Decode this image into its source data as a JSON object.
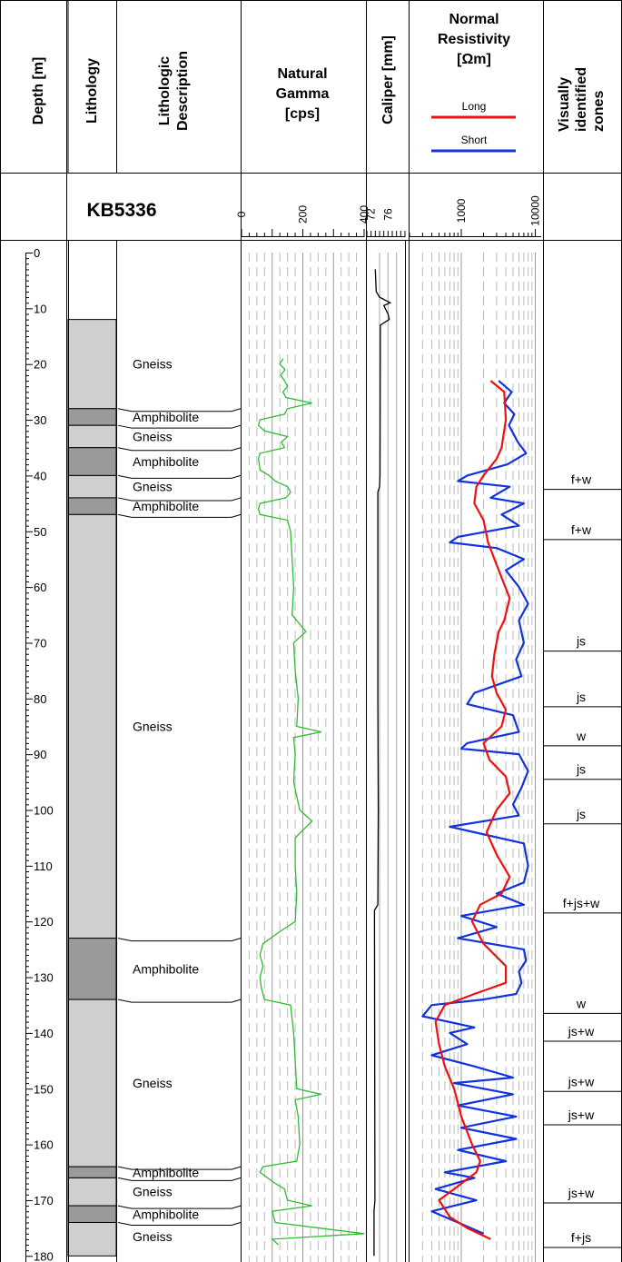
{
  "headers": {
    "depth": "Depth [m]",
    "lithology": "Lithology",
    "description": [
      "Lithologic",
      "Description"
    ],
    "gamma": [
      "Natural",
      "Gamma",
      "[cps]"
    ],
    "caliper": "Caliper [mm]",
    "resistivity": [
      "Normal",
      "Resistivity",
      "[Ωm]"
    ],
    "zones": [
      "Visually",
      "identified",
      "zones"
    ]
  },
  "well_name": "KB5336",
  "legend": {
    "long": "Long",
    "short": "Short"
  },
  "colors": {
    "gamma": "#33bb33",
    "long": "#ee1111",
    "short": "#1133dd",
    "gneiss": "#cfcfcf",
    "amphibolite": "#9a9a9a"
  },
  "chart_data": {
    "type": "line",
    "depth_range": [
      0,
      180
    ],
    "depth_ticks": [
      0,
      10,
      20,
      30,
      40,
      50,
      60,
      70,
      80,
      90,
      100,
      110,
      120,
      130,
      140,
      150,
      160,
      170,
      180
    ],
    "gamma": {
      "ticks": [
        "0",
        "200",
        "400"
      ],
      "range": [
        0,
        400
      ],
      "points": [
        [
          19,
          136
        ],
        [
          20,
          124
        ],
        [
          21,
          142
        ],
        [
          22,
          128
        ],
        [
          23,
          140
        ],
        [
          24,
          150
        ],
        [
          25,
          135
        ],
        [
          26,
          145
        ],
        [
          27,
          230
        ],
        [
          28,
          150
        ],
        [
          29,
          140
        ],
        [
          30,
          60
        ],
        [
          31,
          55
        ],
        [
          32,
          75
        ],
        [
          33,
          150
        ],
        [
          34,
          130
        ],
        [
          35,
          140
        ],
        [
          36,
          60
        ],
        [
          37,
          55
        ],
        [
          38,
          58
        ],
        [
          39,
          60
        ],
        [
          40,
          90
        ],
        [
          41,
          110
        ],
        [
          42,
          150
        ],
        [
          43,
          160
        ],
        [
          44,
          145
        ],
        [
          45,
          60
        ],
        [
          46,
          55
        ],
        [
          47,
          60
        ],
        [
          48,
          150
        ],
        [
          50,
          160
        ],
        [
          55,
          165
        ],
        [
          60,
          170
        ],
        [
          65,
          165
        ],
        [
          68,
          210
        ],
        [
          70,
          170
        ],
        [
          75,
          175
        ],
        [
          80,
          185
        ],
        [
          85,
          180
        ],
        [
          86,
          260
        ],
        [
          87,
          170
        ],
        [
          90,
          175
        ],
        [
          95,
          170
        ],
        [
          100,
          190
        ],
        [
          102,
          230
        ],
        [
          105,
          175
        ],
        [
          110,
          175
        ],
        [
          115,
          180
        ],
        [
          120,
          175
        ],
        [
          122,
          120
        ],
        [
          124,
          70
        ],
        [
          126,
          60
        ],
        [
          128,
          70
        ],
        [
          130,
          60
        ],
        [
          132,
          65
        ],
        [
          134,
          75
        ],
        [
          135,
          160
        ],
        [
          140,
          170
        ],
        [
          145,
          175
        ],
        [
          150,
          180
        ],
        [
          151,
          260
        ],
        [
          152,
          175
        ],
        [
          155,
          185
        ],
        [
          160,
          190
        ],
        [
          163,
          180
        ],
        [
          164,
          70
        ],
        [
          165,
          60
        ],
        [
          167,
          110
        ],
        [
          168,
          140
        ],
        [
          170,
          150
        ],
        [
          171,
          230
        ],
        [
          172,
          100
        ],
        [
          174,
          110
        ],
        [
          176,
          400
        ],
        [
          177,
          100
        ],
        [
          178,
          120
        ]
      ]
    },
    "caliper": {
      "ticks": [
        "72",
        "76"
      ],
      "range": [
        71,
        80
      ],
      "points": [
        [
          3,
          73
        ],
        [
          7,
          73.2
        ],
        [
          8,
          74
        ],
        [
          9,
          76.5
        ],
        [
          9.5,
          75
        ],
        [
          11,
          76
        ],
        [
          12,
          76.3
        ],
        [
          13,
          74.2
        ],
        [
          40,
          74.1
        ],
        [
          42,
          74
        ],
        [
          43,
          73.6
        ],
        [
          80,
          73.6
        ],
        [
          100,
          73.7
        ],
        [
          117,
          73.6
        ],
        [
          118,
          72.8
        ],
        [
          170,
          72.9
        ],
        [
          172,
          72.7
        ],
        [
          180,
          72.7
        ]
      ]
    },
    "resistivity": {
      "ticks": [
        "1000",
        "10000"
      ],
      "range": [
        200,
        12000
      ],
      "scale": "log",
      "long": [
        [
          23,
          2500
        ],
        [
          25,
          3800
        ],
        [
          30,
          4000
        ],
        [
          35,
          3500
        ],
        [
          37,
          3000
        ],
        [
          40,
          2000
        ],
        [
          42,
          1600
        ],
        [
          45,
          1500
        ],
        [
          48,
          2000
        ],
        [
          52,
          2300
        ],
        [
          56,
          3000
        ],
        [
          62,
          4500
        ],
        [
          66,
          3800
        ],
        [
          68,
          3200
        ],
        [
          72,
          2800
        ],
        [
          76,
          2600
        ],
        [
          79,
          3000
        ],
        [
          82,
          4000
        ],
        [
          85,
          3500
        ],
        [
          88,
          2000
        ],
        [
          91,
          2400
        ],
        [
          94,
          4000
        ],
        [
          97,
          4500
        ],
        [
          100,
          3000
        ],
        [
          104,
          2200
        ],
        [
          108,
          3000
        ],
        [
          112,
          4500
        ],
        [
          115,
          3500
        ],
        [
          117,
          1800
        ],
        [
          120,
          1400
        ],
        [
          124,
          2000
        ],
        [
          128,
          4000
        ],
        [
          131,
          4000
        ],
        [
          133,
          1500
        ],
        [
          135,
          600
        ],
        [
          138,
          450
        ],
        [
          142,
          500
        ],
        [
          146,
          600
        ],
        [
          150,
          800
        ],
        [
          155,
          1000
        ],
        [
          160,
          1400
        ],
        [
          163,
          1800
        ],
        [
          165,
          1600
        ],
        [
          168,
          800
        ],
        [
          170,
          500
        ],
        [
          173,
          700
        ],
        [
          175,
          1200
        ],
        [
          177,
          2500
        ]
      ],
      "short": [
        [
          23,
          3200
        ],
        [
          25,
          4800
        ],
        [
          27,
          3800
        ],
        [
          29,
          5200
        ],
        [
          31,
          4400
        ],
        [
          34,
          5800
        ],
        [
          36,
          7500
        ],
        [
          38,
          4200
        ],
        [
          40,
          1200
        ],
        [
          41,
          900
        ],
        [
          42,
          4500
        ],
        [
          44,
          2500
        ],
        [
          45,
          7000
        ],
        [
          47,
          3500
        ],
        [
          49,
          6000
        ],
        [
          51,
          900
        ],
        [
          52,
          700
        ],
        [
          53,
          3000
        ],
        [
          55,
          7000
        ],
        [
          57,
          4000
        ],
        [
          60,
          6000
        ],
        [
          63,
          8000
        ],
        [
          66,
          6000
        ],
        [
          70,
          7000
        ],
        [
          73,
          5500
        ],
        [
          76,
          6500
        ],
        [
          79,
          1500
        ],
        [
          81,
          1200
        ],
        [
          83,
          5000
        ],
        [
          86,
          6000
        ],
        [
          88,
          1200
        ],
        [
          89,
          1000
        ],
        [
          90,
          6000
        ],
        [
          93,
          8000
        ],
        [
          96,
          6500
        ],
        [
          99,
          5000
        ],
        [
          101,
          6000
        ],
        [
          103,
          700
        ],
        [
          104,
          1500
        ],
        [
          106,
          7000
        ],
        [
          110,
          8000
        ],
        [
          113,
          7000
        ],
        [
          115,
          3000
        ],
        [
          117,
          7000
        ],
        [
          119,
          1000
        ],
        [
          121,
          3000
        ],
        [
          123,
          900
        ],
        [
          125,
          7000
        ],
        [
          127,
          7500
        ],
        [
          129,
          6000
        ],
        [
          131,
          6500
        ],
        [
          133,
          5500
        ],
        [
          134,
          2000
        ],
        [
          135,
          400
        ],
        [
          137,
          300
        ],
        [
          139,
          1500
        ],
        [
          140,
          700
        ],
        [
          142,
          1200
        ],
        [
          144,
          400
        ],
        [
          146,
          1500
        ],
        [
          148,
          5000
        ],
        [
          149,
          800
        ],
        [
          151,
          5000
        ],
        [
          153,
          900
        ],
        [
          155,
          5500
        ],
        [
          157,
          1000
        ],
        [
          159,
          5500
        ],
        [
          161,
          900
        ],
        [
          163,
          4000
        ],
        [
          165,
          600
        ],
        [
          166,
          1500
        ],
        [
          168,
          450
        ],
        [
          170,
          1600
        ],
        [
          172,
          400
        ],
        [
          174,
          900
        ],
        [
          176,
          2000
        ]
      ]
    }
  },
  "lithology": [
    {
      "top": 12,
      "bottom": 28,
      "type": "gneiss"
    },
    {
      "top": 28,
      "bottom": 31,
      "type": "amphibolite"
    },
    {
      "top": 31,
      "bottom": 35,
      "type": "gneiss"
    },
    {
      "top": 35,
      "bottom": 40,
      "type": "amphibolite"
    },
    {
      "top": 40,
      "bottom": 44,
      "type": "gneiss"
    },
    {
      "top": 44,
      "bottom": 47,
      "type": "amphibolite"
    },
    {
      "top": 47,
      "bottom": 123,
      "type": "gneiss"
    },
    {
      "top": 123,
      "bottom": 134,
      "type": "amphibolite"
    },
    {
      "top": 134,
      "bottom": 164,
      "type": "gneiss"
    },
    {
      "top": 164,
      "bottom": 166,
      "type": "amphibolite"
    },
    {
      "top": 166,
      "bottom": 171,
      "type": "gneiss"
    },
    {
      "top": 171,
      "bottom": 174,
      "type": "amphibolite"
    },
    {
      "top": 174,
      "bottom": 180,
      "type": "gneiss"
    }
  ],
  "descriptions": [
    {
      "label": "Gneiss",
      "depth": 20,
      "boundary": 28
    },
    {
      "label": "Amphibolite",
      "depth": 29.5,
      "boundary": 31
    },
    {
      "label": "Gneiss",
      "depth": 33,
      "boundary": 35
    },
    {
      "label": "Amphibolite",
      "depth": 37.5,
      "boundary": 40
    },
    {
      "label": "Gneiss",
      "depth": 42,
      "boundary": 44
    },
    {
      "label": "Amphibolite",
      "depth": 45.5,
      "boundary": 47
    },
    {
      "label": "Gneiss",
      "depth": 85,
      "boundary": 123
    },
    {
      "label": "Amphibolite",
      "depth": 128.5,
      "boundary": 134
    },
    {
      "label": "Gneiss",
      "depth": 149,
      "boundary": 164
    },
    {
      "label": "Amphibolite",
      "depth": 165,
      "boundary": 166
    },
    {
      "label": "Gneiss",
      "depth": 168.5,
      "boundary": 171
    },
    {
      "label": "Amphibolite",
      "depth": 172.5,
      "boundary": 174
    },
    {
      "label": "Gneiss",
      "depth": 176.5,
      "boundary": null
    }
  ],
  "zones": [
    {
      "label": "f+w",
      "depth": 42
    },
    {
      "label": "f+w",
      "depth": 51
    },
    {
      "label": "js",
      "depth": 71
    },
    {
      "label": "js",
      "depth": 81
    },
    {
      "label": "w",
      "depth": 88
    },
    {
      "label": "js",
      "depth": 94
    },
    {
      "label": "js",
      "depth": 102
    },
    {
      "label": "f+js+w",
      "depth": 118
    },
    {
      "label": "w",
      "depth": 136
    },
    {
      "label": "js+w",
      "depth": 141
    },
    {
      "label": "js+w",
      "depth": 150
    },
    {
      "label": "js+w",
      "depth": 156
    },
    {
      "label": "js+w",
      "depth": 170
    },
    {
      "label": "f+js",
      "depth": 178
    }
  ]
}
